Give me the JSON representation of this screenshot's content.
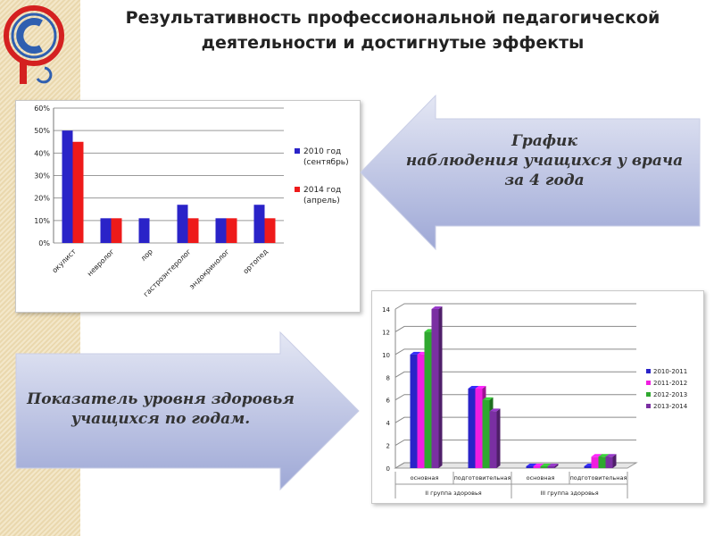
{
  "title": {
    "line1": "Результативность профессиональной педагогической",
    "line2": "деятельности и достигнутые эффекты"
  },
  "arrow_left": {
    "line1": "График",
    "line2": "наблюдения учащихся у врача",
    "line3": "за 4 года"
  },
  "arrow_right": {
    "line1": "Показатель уровня здоровья",
    "line2": "учащихся по годам."
  },
  "colors": {
    "blue": "#2a23c8",
    "red": "#ee1a1a",
    "magenta": "#f01ee0",
    "green": "#2fa82f",
    "purple": "#7a2fa2"
  },
  "chart_data": [
    {
      "type": "bar",
      "categories": [
        "окулист",
        "невролог",
        "лор",
        "гастроэнтеролог",
        "эндокринолог",
        "ортопед"
      ],
      "series": [
        {
          "name_line1": "2010 год",
          "name_line2": "(сентябрь)",
          "color": "#2a23c8",
          "values": [
            50,
            11,
            11,
            17,
            11,
            17
          ]
        },
        {
          "name_line1": "2014 год",
          "name_line2": "(апрель)",
          "color": "#ee1a1a",
          "values": [
            45,
            11,
            null,
            11,
            11,
            11
          ]
        }
      ],
      "yticks": [
        "0%",
        "10%",
        "20%",
        "30%",
        "40%",
        "50%",
        "60%"
      ],
      "ylim": [
        0,
        60
      ],
      "grid": true,
      "legend": "right"
    },
    {
      "type": "bar",
      "categories": [
        "основная",
        "подготовительная",
        "основная",
        "подготовительная"
      ],
      "groups": [
        "II группа здоровья",
        "III группа здоровья"
      ],
      "series": [
        {
          "name": "2010-2011",
          "color": "#2a23c8",
          "values": [
            10,
            7,
            0,
            0
          ]
        },
        {
          "name": "2011-2012",
          "color": "#f01ee0",
          "values": [
            10,
            7,
            0,
            1
          ]
        },
        {
          "name": "2012-2013",
          "color": "#2fa82f",
          "values": [
            12,
            6,
            0,
            1
          ]
        },
        {
          "name": "2013-2014",
          "color": "#7a2fa2",
          "values": [
            14,
            5,
            0,
            1
          ]
        }
      ],
      "yticks": [
        "0",
        "2",
        "4",
        "6",
        "8",
        "10",
        "12",
        "14"
      ],
      "ylim": [
        0,
        14
      ],
      "grid": true,
      "legend": "right"
    }
  ]
}
